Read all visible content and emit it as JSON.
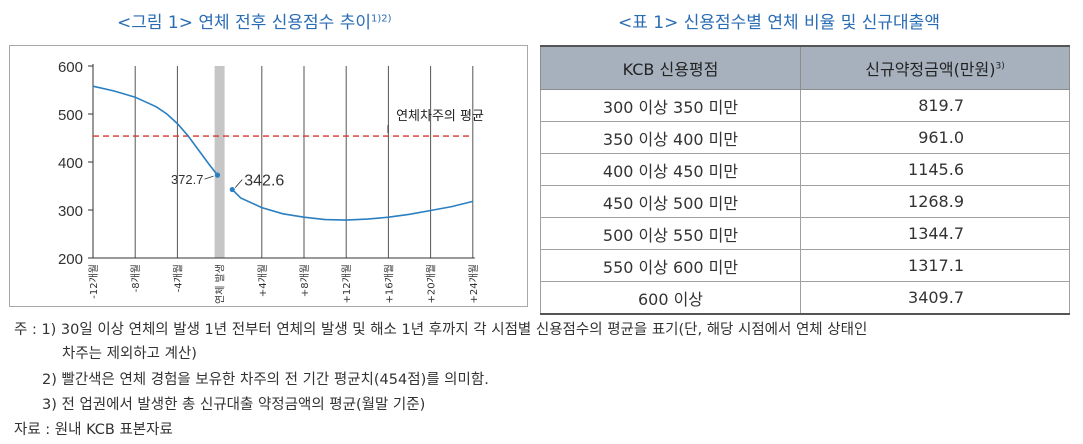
{
  "figure": {
    "title": "<그림 1> 연체 전후 신용점수 추이",
    "title_sup": "1)2)"
  },
  "table": {
    "title": "<표 1> 신용점수별 연체 비율 및 신규대출액",
    "headers": [
      "KCB 신용평점",
      "신규약정금액(만원)"
    ],
    "header_sup": "3)",
    "rows": [
      [
        "300 이상 350 미만",
        "819.7"
      ],
      [
        "350 이상 400 미만",
        "961.0"
      ],
      [
        "400 이상 450 미만",
        "1145.6"
      ],
      [
        "450 이상 500 미만",
        "1268.9"
      ],
      [
        "500 이상 550 미만",
        "1344.7"
      ],
      [
        "550 이상 600 미만",
        "1317.1"
      ],
      [
        "600 이상",
        "3409.7"
      ]
    ]
  },
  "notes": {
    "n1": "주 : 1) 30일 이상 연체의 발생 1년 전부터 연체의 발생 및 해소 1년 후까지 각 시점별 신용점수의 평균을 표기(단, 해당 시점에서 연체 상태인",
    "n1b": "차주는 제외하고 계산)",
    "n2": "2) 빨간색은 연체 경험을 보유한 차주의 전 기간 평균치(454점)를 의미함.",
    "n3": "3) 전 업권에서 발생한 총 신규대출 약정금액의 평균(월말 기준)",
    "source": "자료 : 원내 KCB 표본자료"
  },
  "chart_data": {
    "type": "line",
    "ylim": [
      200,
      600
    ],
    "yticks": [
      200,
      300,
      400,
      500,
      600
    ],
    "xticks": [
      "-12개월",
      "-8개월",
      "-4개월",
      "연체 발생",
      "+4개월",
      "+8개월",
      "+12개월",
      "+16개월",
      "+20개월",
      "+24개월"
    ],
    "series": [
      {
        "segment": "before",
        "x": [
          -12,
          -10,
          -8,
          -6,
          -5,
          -4,
          -3,
          -2,
          -1,
          -0.2
        ],
        "y": [
          558,
          548,
          535,
          515,
          500,
          480,
          455,
          425,
          395,
          372.7
        ]
      },
      {
        "segment": "after",
        "x": [
          1.2,
          2,
          4,
          6,
          8,
          10,
          12,
          14,
          16,
          18,
          20,
          22,
          24
        ],
        "y": [
          342.6,
          325,
          305,
          292,
          285,
          280,
          279,
          281,
          285,
          291,
          299,
          307,
          318
        ]
      }
    ],
    "reference": {
      "value": 454,
      "label": "연체차주의 평균",
      "color": "#d9362b"
    },
    "annotations": [
      {
        "x": -0.2,
        "y": 372.7,
        "label": "372.7"
      },
      {
        "x": 1.2,
        "y": 342.6,
        "label": "342.6"
      }
    ],
    "line_color": "#2a7fc1",
    "grid": "vertical"
  }
}
